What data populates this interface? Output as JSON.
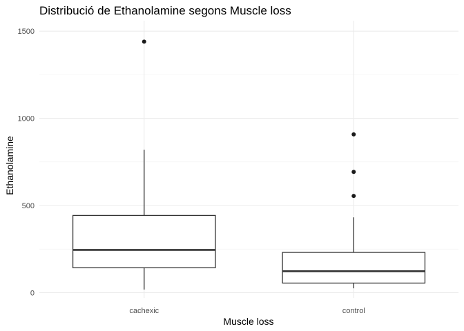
{
  "chart_data": {
    "type": "boxplot",
    "title": "Distribució de Ethanolamine segons Muscle loss",
    "xlabel": "Muscle loss",
    "ylabel": "Ethanolamine",
    "categories": [
      "cachexic",
      "control"
    ],
    "ylim": [
      -30,
      1560
    ],
    "y_ticks": [
      0,
      500,
      1000,
      1500
    ],
    "y_tick_labels": [
      "0",
      "500",
      "1000",
      "1500"
    ],
    "grid": true,
    "legend": "none",
    "boxes": [
      {
        "category": "cachexic",
        "whisker_low": 18,
        "q1": 143,
        "median": 245,
        "q3": 443,
        "whisker_high": 820,
        "outliers": [
          1440
        ]
      },
      {
        "category": "control",
        "whisker_low": 25,
        "q1": 55,
        "median": 123,
        "q3": 231,
        "whisker_high": 432,
        "outliers": [
          555,
          693,
          908
        ]
      }
    ]
  }
}
